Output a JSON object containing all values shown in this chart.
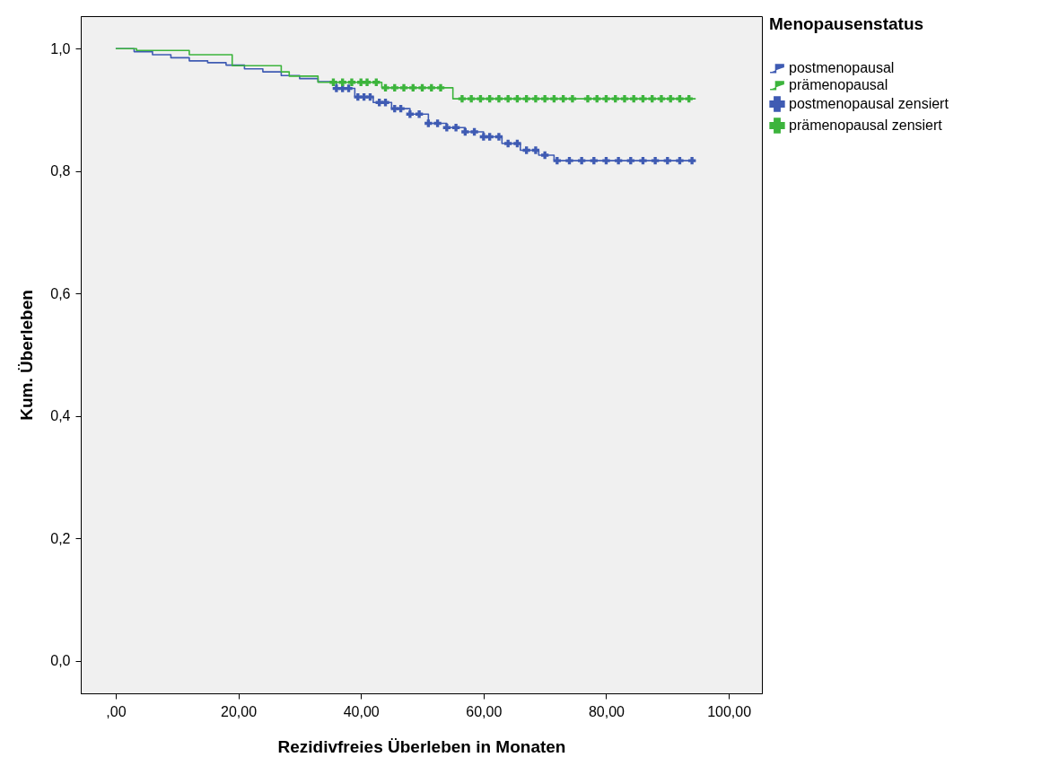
{
  "chart_data": {
    "type": "step",
    "xlabel": "Rezidivfreies Überleben in Monaten",
    "ylabel": "Kum. Überleben",
    "legend_title": "Menopausenstatus",
    "legend": "right",
    "grid": false,
    "xlim": [
      -5.7,
      105.4
    ],
    "ylim": [
      -0.053,
      1.053
    ],
    "xticks": [
      {
        "value": 0,
        "label": ",00"
      },
      {
        "value": 20,
        "label": "20,00"
      },
      {
        "value": 40,
        "label": "40,00"
      },
      {
        "value": 60,
        "label": "60,00"
      },
      {
        "value": 80,
        "label": "80,00"
      },
      {
        "value": 100,
        "label": "100,00"
      }
    ],
    "yticks": [
      {
        "value": 0,
        "label": "0,0"
      },
      {
        "value": 0.2,
        "label": "0,2"
      },
      {
        "value": 0.4,
        "label": "0,4"
      },
      {
        "value": 0.6,
        "label": "0,6"
      },
      {
        "value": 0.8,
        "label": "0,8"
      },
      {
        "value": 1,
        "label": "1,0"
      }
    ],
    "series": [
      {
        "name": "postmenopausal",
        "type": "step",
        "marker": "none",
        "color": "#3f5bb3",
        "x": [
          0,
          3,
          6,
          9,
          12,
          15,
          18,
          21,
          24,
          27,
          30,
          33,
          36,
          39,
          42,
          45,
          48,
          51,
          54,
          57,
          60,
          63,
          66,
          69,
          71.5,
          94.6
        ],
        "values": [
          1.0,
          0.995,
          0.99,
          0.985,
          0.98,
          0.977,
          0.973,
          0.967,
          0.962,
          0.956,
          0.951,
          0.946,
          0.935,
          0.921,
          0.912,
          0.902,
          0.893,
          0.878,
          0.871,
          0.864,
          0.856,
          0.845,
          0.834,
          0.826,
          0.817,
          0.817
        ]
      },
      {
        "name": "prämenopausal",
        "type": "step",
        "marker": "none",
        "color": "#3cb43c",
        "x": [
          0,
          3.4,
          12,
          19,
          27,
          28.3,
          33,
          43.4,
          55,
          94.6
        ],
        "values": [
          1.0,
          0.997,
          0.99,
          0.972,
          0.962,
          0.955,
          0.945,
          0.936,
          0.918,
          0.918
        ]
      },
      {
        "name": "postmenopausal zensiert",
        "type": "scatter",
        "marker": "cross",
        "color": "#3f5bb3",
        "x": [
          36,
          37,
          38,
          39.5,
          40.5,
          41.5,
          43,
          44,
          45.5,
          46.5,
          48,
          49.5,
          51,
          52.5,
          54,
          55.5,
          57,
          58.5,
          60,
          61,
          62.5,
          64,
          65.5,
          67,
          68.5,
          70,
          72,
          74,
          76,
          78,
          80,
          82,
          84,
          86,
          88,
          90,
          92,
          94
        ],
        "values": [
          0.935,
          0.935,
          0.935,
          0.921,
          0.921,
          0.921,
          0.912,
          0.912,
          0.902,
          0.902,
          0.893,
          0.893,
          0.878,
          0.878,
          0.871,
          0.871,
          0.864,
          0.864,
          0.856,
          0.856,
          0.856,
          0.845,
          0.845,
          0.834,
          0.834,
          0.826,
          0.817,
          0.817,
          0.817,
          0.817,
          0.817,
          0.817,
          0.817,
          0.817,
          0.817,
          0.817,
          0.817,
          0.817
        ]
      },
      {
        "name": "prämenopausal zensiert",
        "type": "scatter",
        "marker": "cross",
        "color": "#3cb43c",
        "x": [
          35.5,
          37,
          38.5,
          40,
          41,
          42.5,
          44,
          45.5,
          47,
          48.5,
          50,
          51.5,
          53,
          56.5,
          58,
          59.5,
          61,
          62.5,
          64,
          65.5,
          67,
          68.5,
          70,
          71.5,
          73,
          74.5,
          77,
          78.5,
          80,
          81.5,
          83,
          84.5,
          86,
          87.5,
          89,
          90.5,
          92,
          93.5
        ],
        "values": [
          0.945,
          0.945,
          0.945,
          0.945,
          0.945,
          0.945,
          0.936,
          0.936,
          0.936,
          0.936,
          0.936,
          0.936,
          0.936,
          0.918,
          0.918,
          0.918,
          0.918,
          0.918,
          0.918,
          0.918,
          0.918,
          0.918,
          0.918,
          0.918,
          0.918,
          0.918,
          0.918,
          0.918,
          0.918,
          0.918,
          0.918,
          0.918,
          0.918,
          0.918,
          0.918,
          0.918,
          0.918,
          0.918
        ]
      }
    ]
  }
}
